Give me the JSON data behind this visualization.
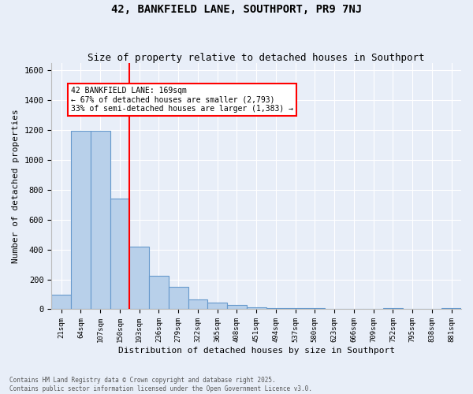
{
  "title": "42, BANKFIELD LANE, SOUTHPORT, PR9 7NJ",
  "subtitle": "Size of property relative to detached houses in Southport",
  "xlabel": "Distribution of detached houses by size in Southport",
  "ylabel": "Number of detached properties",
  "categories": [
    "21sqm",
    "64sqm",
    "107sqm",
    "150sqm",
    "193sqm",
    "236sqm",
    "279sqm",
    "322sqm",
    "365sqm",
    "408sqm",
    "451sqm",
    "494sqm",
    "537sqm",
    "580sqm",
    "623sqm",
    "666sqm",
    "709sqm",
    "752sqm",
    "795sqm",
    "838sqm",
    "881sqm"
  ],
  "bar_heights": [
    100,
    1195,
    1195,
    740,
    420,
    222,
    150,
    65,
    47,
    30,
    15,
    10,
    10,
    10,
    0,
    0,
    0,
    10,
    0,
    0,
    10
  ],
  "bar_color": "#b8d0ea",
  "bar_edge_color": "#6699cc",
  "background_color": "#e8eef8",
  "grid_color": "#ffffff",
  "vline_x": 3.5,
  "annotation_text": "42 BANKFIELD LANE: 169sqm\n← 67% of detached houses are smaller (2,793)\n33% of semi-detached houses are larger (1,383) →",
  "ylim": [
    0,
    1650
  ],
  "yticks": [
    0,
    200,
    400,
    600,
    800,
    1000,
    1200,
    1400,
    1600
  ],
  "title_fontsize": 10,
  "subtitle_fontsize": 9,
  "footer1": "Contains HM Land Registry data © Crown copyright and database right 2025.",
  "footer2": "Contains public sector information licensed under the Open Government Licence v3.0."
}
